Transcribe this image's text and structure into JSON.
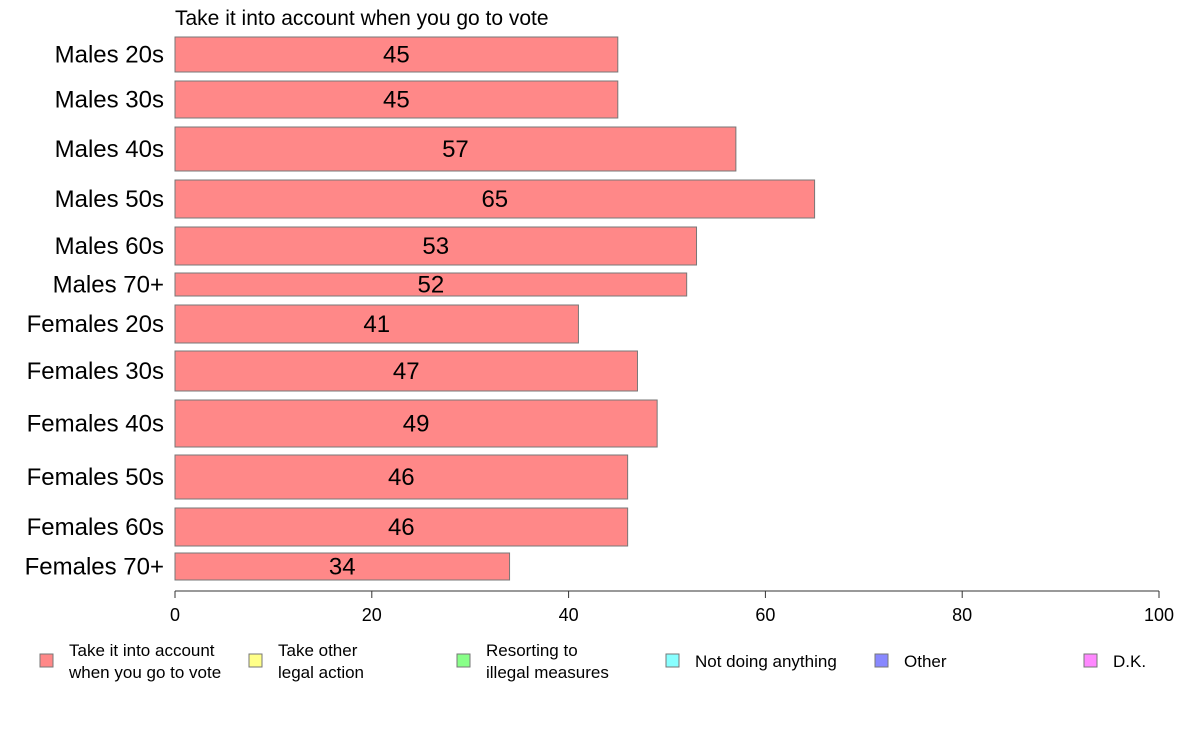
{
  "chart_data": {
    "type": "bar",
    "orientation": "horizontal",
    "title": "Take it into account when you go to vote",
    "xlabel": "",
    "ylabel": "",
    "xlim": [
      0,
      100
    ],
    "xticks": [
      0,
      20,
      40,
      60,
      80,
      100
    ],
    "grid": false,
    "legend_position": "bottom",
    "categories": [
      "Males 20s",
      "Males 30s",
      "Males 40s",
      "Males 50s",
      "Males 60s",
      "Males 70+",
      "Females 20s",
      "Females 30s",
      "Females 40s",
      "Females 50s",
      "Females 60s",
      "Females 70+"
    ],
    "series": [
      {
        "name": "Take it into account\nwhen you go to vote",
        "color": "#ff8888",
        "values": [
          45,
          45,
          57,
          65,
          53,
          52,
          41,
          47,
          49,
          46,
          46,
          34
        ]
      }
    ],
    "legend": [
      {
        "label": "Take it into account\nwhen you go to vote",
        "color": "#ff8888"
      },
      {
        "label": "Take other\nlegal action",
        "color": "#ffff88"
      },
      {
        "label": "Resorting to\nillegal measures",
        "color": "#88ff88"
      },
      {
        "label": "Not doing anything",
        "color": "#88ffff"
      },
      {
        "label": "Other",
        "color": "#8888ff"
      },
      {
        "label": "D.K.",
        "color": "#ff88ff"
      }
    ]
  }
}
